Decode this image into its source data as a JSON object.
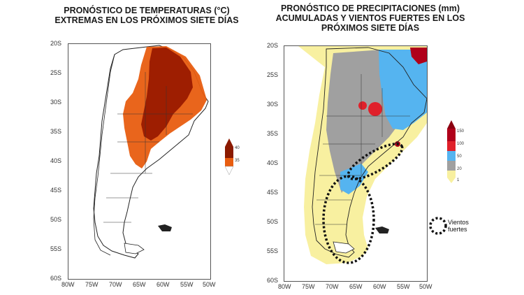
{
  "left_map": {
    "title_line1": "PRONÓSTICO DE TEMPERATURAS (°C)",
    "title_line2": "EXTREMAS EN LOS PRÓXIMOS SIETE DÍAS",
    "lat_labels": [
      "20S",
      "25S",
      "30S",
      "35S",
      "40S",
      "45S",
      "50S",
      "55S",
      "60S"
    ],
    "lon_labels": [
      "80W",
      "75W",
      "70W",
      "65W",
      "60W",
      "55W",
      "50W"
    ],
    "colorbar": {
      "labels": [
        "40",
        "35"
      ],
      "colors": [
        "#8b1a00",
        "#e85d10"
      ]
    }
  },
  "right_map": {
    "title_line1": "PRONÓSTICO DE PRECIPITACIONES (mm)",
    "title_line2": "ACUMULADAS Y VIENTOS FUERTES EN LOS",
    "title_line3": "PRÓXIMOS SIETE DÍAS",
    "lat_labels": [
      "20S",
      "25S",
      "30S",
      "35S",
      "40S",
      "45S",
      "50S",
      "55S",
      "60S"
    ],
    "lon_labels": [
      "80W",
      "75W",
      "70W",
      "65W",
      "60W",
      "55W",
      "50W"
    ],
    "colorbar": {
      "labels": [
        "150",
        "100",
        "50",
        "20",
        "1"
      ],
      "colors": [
        "#b0001a",
        "#e0202a",
        "#55b4f0",
        "#a0a0a0",
        "#f8f0a0"
      ]
    },
    "legend_label_line1": "Vientos",
    "legend_label_line2": "fuertes"
  }
}
